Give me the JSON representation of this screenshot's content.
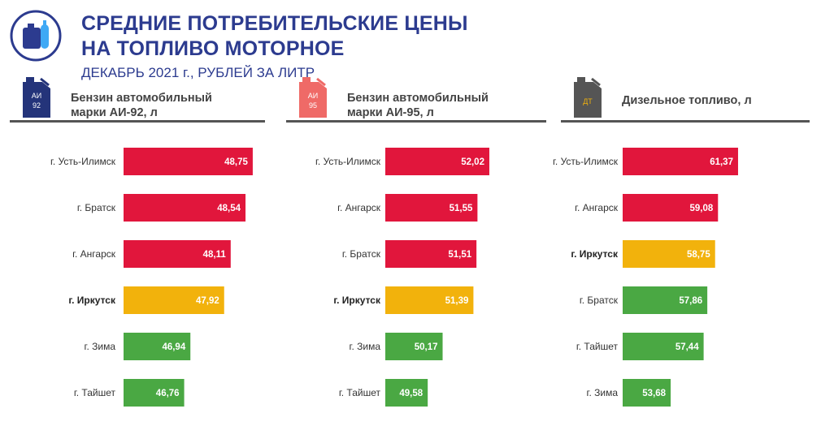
{
  "header": {
    "title_line1": "СРЕДНИЕ ПОТРЕБИТЕЛЬСКИЕ ЦЕНЫ",
    "title_line2": "НА ТОПЛИВО МОТОРНОЕ",
    "subtitle": "ДЕКАБРЬ 2021 г., РУБЛЕЙ ЗА ЛИТР"
  },
  "colors": {
    "title": "#2c3b8f",
    "red": "#e1163c",
    "orange": "#f2b20c",
    "green": "#4aa843",
    "ai92_can": "#24347a",
    "ai95_can": "#ef6a67",
    "dt_can": "#555555"
  },
  "panels": [
    {
      "label_line1": "Бензин автомобильный",
      "label_line2": "марки АИ-92, л",
      "can_line1": "АИ",
      "can_line2": "92",
      "icon": "fuel-can-ai92-icon"
    },
    {
      "label_line1": "Бензин автомобильный",
      "label_line2": "марки АИ-95, л",
      "can_line1": "АИ",
      "can_line2": "95",
      "icon": "fuel-can-ai95-icon"
    },
    {
      "label_line1": "Дизельное топливо, л",
      "label_line2": "",
      "can_line1": "ДТ",
      "can_line2": "",
      "icon": "fuel-can-dt-icon"
    }
  ],
  "chart_data": [
    {
      "type": "bar",
      "orientation": "horizontal",
      "title": "Бензин автомобильный марки АИ-92, л",
      "categories": [
        "г. Усть-Илимск",
        "г. Братск",
        "г. Ангарск",
        "г. Иркутск",
        "г. Зима",
        "г. Тайшет"
      ],
      "values": [
        48.75,
        48.54,
        48.11,
        47.92,
        46.94,
        46.76
      ],
      "value_labels": [
        "48,75",
        "48,54",
        "48,11",
        "47,92",
        "46,94",
        "46,76"
      ],
      "colors": [
        "red",
        "red",
        "red",
        "orange",
        "green",
        "green"
      ],
      "highlight": "г. Иркутск",
      "xlim": [
        45,
        49.2
      ]
    },
    {
      "type": "bar",
      "orientation": "horizontal",
      "title": "Бензин автомобильный марки АИ-95, л",
      "categories": [
        "г. Усть-Илимск",
        "г. Ангарск",
        "г. Братск",
        "г. Иркутск",
        "г. Зима",
        "г. Тайшет"
      ],
      "values": [
        52.02,
        51.55,
        51.51,
        51.39,
        50.17,
        49.58
      ],
      "value_labels": [
        "52,02",
        "51,55",
        "51,51",
        "51,39",
        "50,17",
        "49,58"
      ],
      "colors": [
        "red",
        "red",
        "red",
        "orange",
        "green",
        "green"
      ],
      "highlight": "г. Иркутск",
      "xlim": [
        47.9,
        52.6
      ]
    },
    {
      "type": "bar",
      "orientation": "horizontal",
      "title": "Дизельное топливо, л",
      "categories": [
        "г. Усть-Илимск",
        "г. Ангарск",
        "г. Иркутск",
        "г. Братск",
        "г. Тайшет",
        "г. Зима"
      ],
      "values": [
        61.37,
        59.08,
        58.75,
        57.86,
        57.44,
        53.68
      ],
      "value_labels": [
        "61,37",
        "59,08",
        "58,75",
        "57,86",
        "57,44",
        "53,68"
      ],
      "colors": [
        "red",
        "red",
        "orange",
        "green",
        "green",
        "green"
      ],
      "highlight": "г. Иркутск",
      "xlim": [
        48.2,
        62.3
      ]
    }
  ]
}
